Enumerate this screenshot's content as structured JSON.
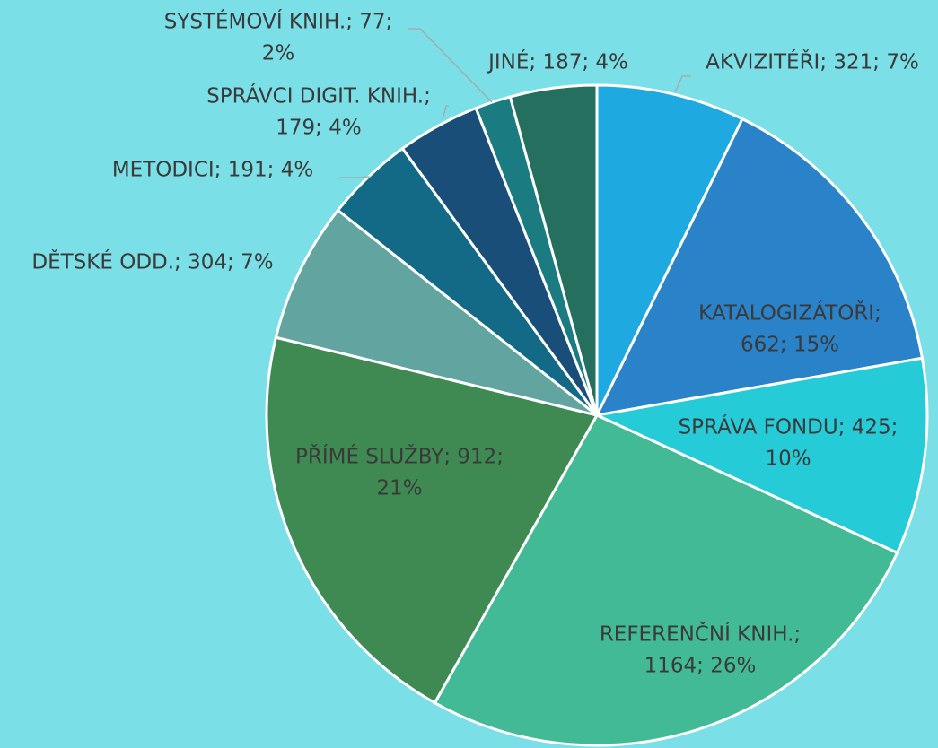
{
  "chart_data": {
    "type": "pie",
    "labels": [
      [
        "AKVIZITÉŘI; 321; 7%"
      ],
      [
        "KATALOGIZÁTOŘI;",
        "662; 15%"
      ],
      [
        "SPRÁVA FONDU; 425;",
        "10%"
      ],
      [
        "REFERENČNÍ KNIH.;",
        "1164; 26%"
      ],
      [
        "PŘÍMÉ SLUŽBY; 912;",
        "21%"
      ],
      [
        "DĚTSKÉ ODD.; 304; 7%"
      ],
      [
        "METODICI; 191; 4%"
      ],
      [
        "SPRÁVCI DIGIT. KNIH.;",
        "179; 4%"
      ],
      [
        "SYSTÉMOVÍ KNIH.; 77;",
        "2%"
      ],
      [
        "JINÉ; 187; 4%"
      ]
    ],
    "values": [
      321,
      662,
      425,
      1164,
      912,
      304,
      191,
      179,
      77,
      187
    ],
    "colors": [
      "#1fa9e1",
      "#2a82c8",
      "#26cbd8",
      "#43ba96",
      "#3e8a52",
      "#62a5a0",
      "#136a86",
      "#184e77",
      "#1a7c80",
      "#256f5e"
    ]
  }
}
